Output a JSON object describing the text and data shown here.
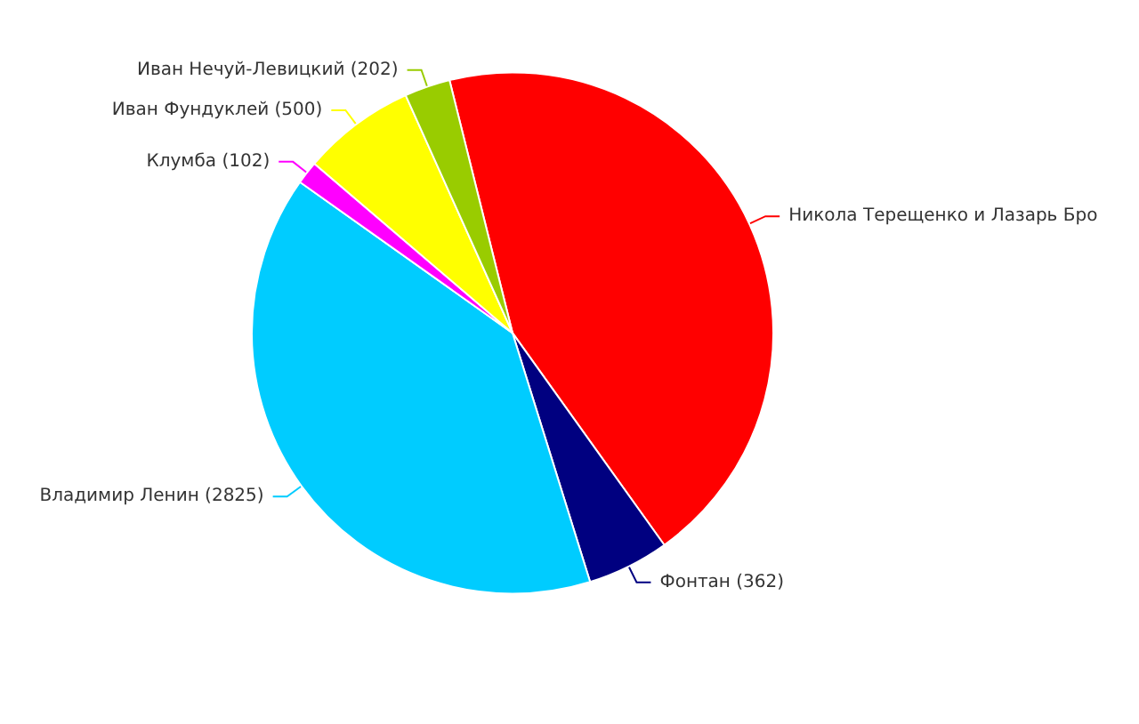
{
  "chart_data": {
    "type": "pie",
    "categories": [
      "Никола Терещенко и Лазарь Бро",
      "Фонтан",
      "Владимир Ленин",
      "Клумба",
      "Иван Фундуклей",
      "Иван Нечуй-Левицкий"
    ],
    "values": [
      3136,
      362,
      2825,
      102,
      500,
      202
    ],
    "value_labels": [
      null,
      "(362)",
      "(2825)",
      "(102)",
      "(500)",
      "(202)"
    ],
    "colors": [
      "#ff0000",
      "#000080",
      "#00ccff",
      "#ff00ff",
      "#ffff00",
      "#99cc00"
    ],
    "legend": false
  }
}
